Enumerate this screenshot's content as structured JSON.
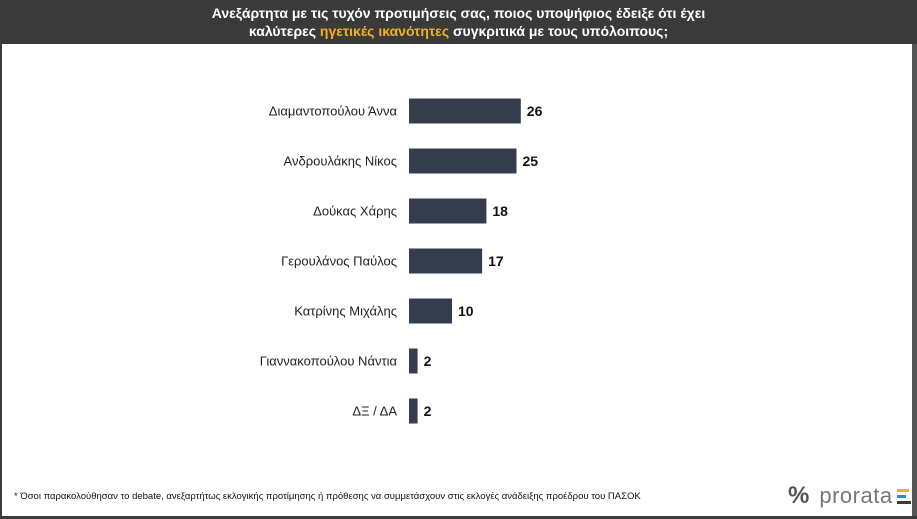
{
  "header": {
    "line1": "Ανεξάρτητα με τις τυχόν προτιμήσεις σας, ποιος υποψήφιος έδειξε ότι έχει",
    "line2_pre": "καλύτερες ",
    "line2_highlight": "ηγετικές ικανότητες",
    "line2_post": " συγκριτικά με τους υπόλοιπους;"
  },
  "chart_data": {
    "type": "bar",
    "orientation": "horizontal",
    "categories": [
      "Διαμαντοπούλου Άννα",
      "Ανδρουλάκης Νίκος",
      "Δούκας Χάρης",
      "Γερουλάνος Παύλος",
      "Κατρίνης Μιχάλης",
      "Γιαννακοπούλου Νάντια",
      "ΔΞ / ΔΑ"
    ],
    "values": [
      26,
      25,
      18,
      17,
      10,
      2,
      2
    ],
    "value_labels": [
      "26",
      "25",
      "18",
      "17",
      "10",
      "2",
      "2"
    ],
    "bar_color": "#343d4d"
  },
  "footnote": "* Όσοι παρακολούθησαν το debate, ανεξαρτήτως εκλογικής προτίμησης ή πρόθεσης να συμμετάσχουν στις εκλογές ανάδειξης προέδρου του ΠΑΣΟΚ",
  "logo": {
    "symbol": "%",
    "name": "prorata",
    "bar_colors": [
      "#f2b21e",
      "#2a8fd0",
      "#3b3b3b"
    ]
  }
}
